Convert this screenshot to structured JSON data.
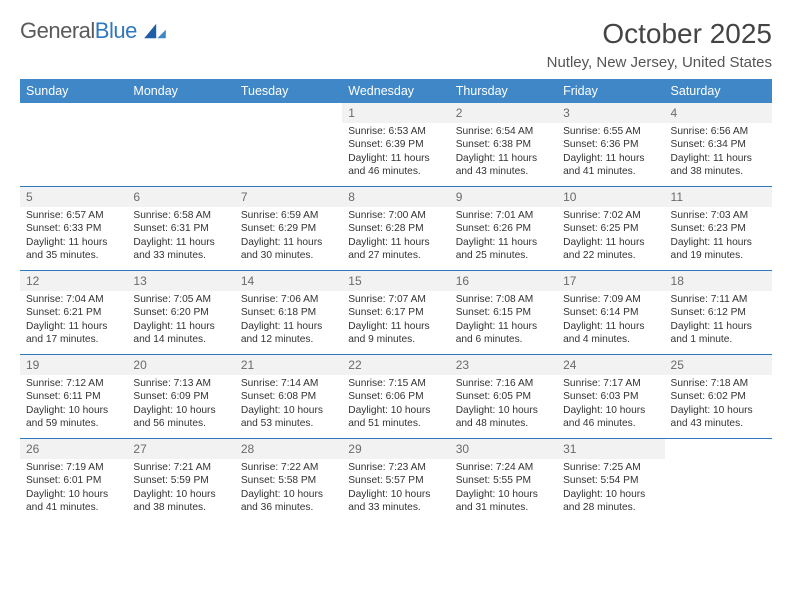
{
  "brand": {
    "word1": "General",
    "word2": "Blue"
  },
  "title": "October 2025",
  "location": "Nutley, New Jersey, United States",
  "dayHeaders": [
    "Sunday",
    "Monday",
    "Tuesday",
    "Wednesday",
    "Thursday",
    "Friday",
    "Saturday"
  ],
  "colors": {
    "headerBg": "#3f87c7",
    "rowBorder": "#2f78bd",
    "dayBg": "#f2f2f2"
  },
  "weeks": [
    [
      {
        "n": "",
        "sunrise": "",
        "sunset": "",
        "daylight": ""
      },
      {
        "n": "",
        "sunrise": "",
        "sunset": "",
        "daylight": ""
      },
      {
        "n": "",
        "sunrise": "",
        "sunset": "",
        "daylight": ""
      },
      {
        "n": "1",
        "sunrise": "Sunrise: 6:53 AM",
        "sunset": "Sunset: 6:39 PM",
        "daylight": "Daylight: 11 hours and 46 minutes."
      },
      {
        "n": "2",
        "sunrise": "Sunrise: 6:54 AM",
        "sunset": "Sunset: 6:38 PM",
        "daylight": "Daylight: 11 hours and 43 minutes."
      },
      {
        "n": "3",
        "sunrise": "Sunrise: 6:55 AM",
        "sunset": "Sunset: 6:36 PM",
        "daylight": "Daylight: 11 hours and 41 minutes."
      },
      {
        "n": "4",
        "sunrise": "Sunrise: 6:56 AM",
        "sunset": "Sunset: 6:34 PM",
        "daylight": "Daylight: 11 hours and 38 minutes."
      }
    ],
    [
      {
        "n": "5",
        "sunrise": "Sunrise: 6:57 AM",
        "sunset": "Sunset: 6:33 PM",
        "daylight": "Daylight: 11 hours and 35 minutes."
      },
      {
        "n": "6",
        "sunrise": "Sunrise: 6:58 AM",
        "sunset": "Sunset: 6:31 PM",
        "daylight": "Daylight: 11 hours and 33 minutes."
      },
      {
        "n": "7",
        "sunrise": "Sunrise: 6:59 AM",
        "sunset": "Sunset: 6:29 PM",
        "daylight": "Daylight: 11 hours and 30 minutes."
      },
      {
        "n": "8",
        "sunrise": "Sunrise: 7:00 AM",
        "sunset": "Sunset: 6:28 PM",
        "daylight": "Daylight: 11 hours and 27 minutes."
      },
      {
        "n": "9",
        "sunrise": "Sunrise: 7:01 AM",
        "sunset": "Sunset: 6:26 PM",
        "daylight": "Daylight: 11 hours and 25 minutes."
      },
      {
        "n": "10",
        "sunrise": "Sunrise: 7:02 AM",
        "sunset": "Sunset: 6:25 PM",
        "daylight": "Daylight: 11 hours and 22 minutes."
      },
      {
        "n": "11",
        "sunrise": "Sunrise: 7:03 AM",
        "sunset": "Sunset: 6:23 PM",
        "daylight": "Daylight: 11 hours and 19 minutes."
      }
    ],
    [
      {
        "n": "12",
        "sunrise": "Sunrise: 7:04 AM",
        "sunset": "Sunset: 6:21 PM",
        "daylight": "Daylight: 11 hours and 17 minutes."
      },
      {
        "n": "13",
        "sunrise": "Sunrise: 7:05 AM",
        "sunset": "Sunset: 6:20 PM",
        "daylight": "Daylight: 11 hours and 14 minutes."
      },
      {
        "n": "14",
        "sunrise": "Sunrise: 7:06 AM",
        "sunset": "Sunset: 6:18 PM",
        "daylight": "Daylight: 11 hours and 12 minutes."
      },
      {
        "n": "15",
        "sunrise": "Sunrise: 7:07 AM",
        "sunset": "Sunset: 6:17 PM",
        "daylight": "Daylight: 11 hours and 9 minutes."
      },
      {
        "n": "16",
        "sunrise": "Sunrise: 7:08 AM",
        "sunset": "Sunset: 6:15 PM",
        "daylight": "Daylight: 11 hours and 6 minutes."
      },
      {
        "n": "17",
        "sunrise": "Sunrise: 7:09 AM",
        "sunset": "Sunset: 6:14 PM",
        "daylight": "Daylight: 11 hours and 4 minutes."
      },
      {
        "n": "18",
        "sunrise": "Sunrise: 7:11 AM",
        "sunset": "Sunset: 6:12 PM",
        "daylight": "Daylight: 11 hours and 1 minute."
      }
    ],
    [
      {
        "n": "19",
        "sunrise": "Sunrise: 7:12 AM",
        "sunset": "Sunset: 6:11 PM",
        "daylight": "Daylight: 10 hours and 59 minutes."
      },
      {
        "n": "20",
        "sunrise": "Sunrise: 7:13 AM",
        "sunset": "Sunset: 6:09 PM",
        "daylight": "Daylight: 10 hours and 56 minutes."
      },
      {
        "n": "21",
        "sunrise": "Sunrise: 7:14 AM",
        "sunset": "Sunset: 6:08 PM",
        "daylight": "Daylight: 10 hours and 53 minutes."
      },
      {
        "n": "22",
        "sunrise": "Sunrise: 7:15 AM",
        "sunset": "Sunset: 6:06 PM",
        "daylight": "Daylight: 10 hours and 51 minutes."
      },
      {
        "n": "23",
        "sunrise": "Sunrise: 7:16 AM",
        "sunset": "Sunset: 6:05 PM",
        "daylight": "Daylight: 10 hours and 48 minutes."
      },
      {
        "n": "24",
        "sunrise": "Sunrise: 7:17 AM",
        "sunset": "Sunset: 6:03 PM",
        "daylight": "Daylight: 10 hours and 46 minutes."
      },
      {
        "n": "25",
        "sunrise": "Sunrise: 7:18 AM",
        "sunset": "Sunset: 6:02 PM",
        "daylight": "Daylight: 10 hours and 43 minutes."
      }
    ],
    [
      {
        "n": "26",
        "sunrise": "Sunrise: 7:19 AM",
        "sunset": "Sunset: 6:01 PM",
        "daylight": "Daylight: 10 hours and 41 minutes."
      },
      {
        "n": "27",
        "sunrise": "Sunrise: 7:21 AM",
        "sunset": "Sunset: 5:59 PM",
        "daylight": "Daylight: 10 hours and 38 minutes."
      },
      {
        "n": "28",
        "sunrise": "Sunrise: 7:22 AM",
        "sunset": "Sunset: 5:58 PM",
        "daylight": "Daylight: 10 hours and 36 minutes."
      },
      {
        "n": "29",
        "sunrise": "Sunrise: 7:23 AM",
        "sunset": "Sunset: 5:57 PM",
        "daylight": "Daylight: 10 hours and 33 minutes."
      },
      {
        "n": "30",
        "sunrise": "Sunrise: 7:24 AM",
        "sunset": "Sunset: 5:55 PM",
        "daylight": "Daylight: 10 hours and 31 minutes."
      },
      {
        "n": "31",
        "sunrise": "Sunrise: 7:25 AM",
        "sunset": "Sunset: 5:54 PM",
        "daylight": "Daylight: 10 hours and 28 minutes."
      },
      {
        "n": "",
        "sunrise": "",
        "sunset": "",
        "daylight": ""
      }
    ]
  ]
}
